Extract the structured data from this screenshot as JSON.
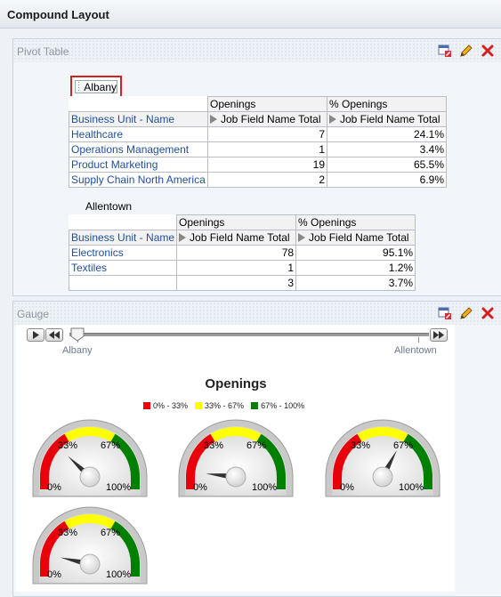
{
  "window": {
    "title": "Compound Layout"
  },
  "pivot": {
    "section_label": "Pivot Table",
    "page_item": "Albany",
    "table1": {
      "col_headers": [
        "Openings",
        "% Openings"
      ],
      "row_header_label": "Business Unit - Name",
      "sub_header": "Job Field Name Total",
      "rows": [
        {
          "name": "Healthcare",
          "openings": "7",
          "pct": "24.1%"
        },
        {
          "name": "Operations Management",
          "openings": "1",
          "pct": "3.4%"
        },
        {
          "name": "Product Marketing",
          "openings": "19",
          "pct": "65.5%"
        },
        {
          "name": "Supply Chain North America",
          "openings": "2",
          "pct": "6.9%"
        }
      ]
    },
    "table2": {
      "label": "Allentown",
      "col_headers": [
        "Openings",
        "% Openings"
      ],
      "row_header_label": "Business Unit - Name",
      "sub_header": "Job Field Name Total",
      "rows": [
        {
          "name": "Electronics",
          "openings": "78",
          "pct": "95.1%"
        },
        {
          "name": "Textiles",
          "openings": "1",
          "pct": "1.2%"
        },
        {
          "name": "",
          "openings": "3",
          "pct": "3.7%"
        }
      ]
    }
  },
  "gauge": {
    "section_label": "Gauge",
    "slider": {
      "start_label": "Albany",
      "end_label": "Allentown",
      "position": 0
    },
    "chart_title": "Openings",
    "legend": [
      {
        "label": "0% - 33%",
        "color": "#e8000b"
      },
      {
        "label": "33% - 67%",
        "color": "#ffff00"
      },
      {
        "label": "67% - 100%",
        "color": "#008000"
      }
    ],
    "tick_labels": {
      "low": "0%",
      "q1": "33%",
      "q2": "67%",
      "high": "100%"
    },
    "gauges": [
      {
        "value": 24.1
      },
      {
        "value": 3.4
      },
      {
        "value": 65.5
      },
      {
        "value": 6.9
      }
    ]
  },
  "chart_data": {
    "type": "gauge",
    "title": "Openings",
    "categories": [
      "Healthcare",
      "Operations Management",
      "Product Marketing",
      "Supply Chain North America"
    ],
    "values": [
      24.1,
      3.4,
      65.5,
      6.9
    ],
    "min": 0,
    "max": 100,
    "thresholds": [
      {
        "label": "0% - 33%",
        "from": 0,
        "to": 33,
        "color": "#e8000b"
      },
      {
        "label": "33% - 67%",
        "from": 33,
        "to": 67,
        "color": "#ffff00"
      },
      {
        "label": "67% - 100%",
        "from": 67,
        "to": 100,
        "color": "#008000"
      }
    ],
    "legend": "top-center"
  }
}
